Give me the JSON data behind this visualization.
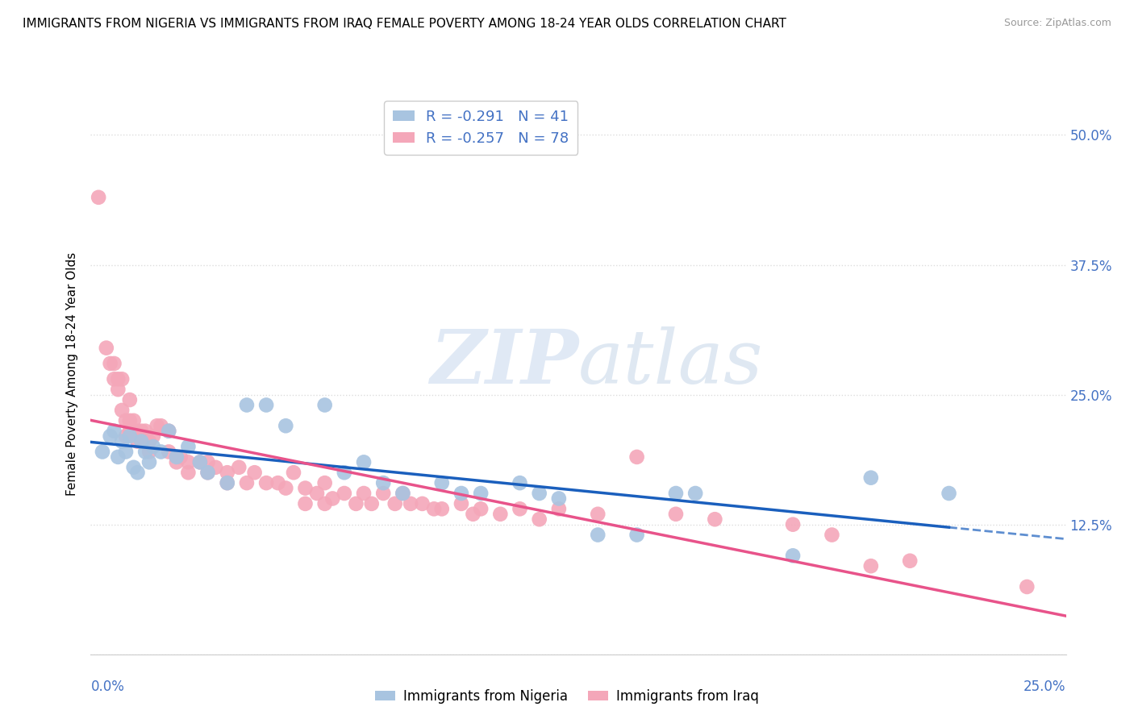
{
  "title": "IMMIGRANTS FROM NIGERIA VS IMMIGRANTS FROM IRAQ FEMALE POVERTY AMONG 18-24 YEAR OLDS CORRELATION CHART",
  "source": "Source: ZipAtlas.com",
  "ylabel": "Female Poverty Among 18-24 Year Olds",
  "xlim": [
    0.0,
    0.25
  ],
  "ylim": [
    0.0,
    0.54
  ],
  "yticks": [
    0.0,
    0.125,
    0.25,
    0.375,
    0.5
  ],
  "ytick_labels": [
    "",
    "12.5%",
    "25.0%",
    "37.5%",
    "50.0%"
  ],
  "legend_R_nigeria": "-0.291",
  "legend_N_nigeria": "41",
  "legend_R_iraq": "-0.257",
  "legend_N_iraq": "78",
  "nigeria_color": "#a8c4e0",
  "iraq_color": "#f4a7b9",
  "nigeria_line_color": "#1a5fbd",
  "iraq_line_color": "#e8538a",
  "nigeria_scatter": [
    [
      0.003,
      0.195
    ],
    [
      0.005,
      0.21
    ],
    [
      0.006,
      0.215
    ],
    [
      0.007,
      0.19
    ],
    [
      0.008,
      0.205
    ],
    [
      0.009,
      0.195
    ],
    [
      0.01,
      0.21
    ],
    [
      0.011,
      0.18
    ],
    [
      0.012,
      0.175
    ],
    [
      0.013,
      0.205
    ],
    [
      0.014,
      0.195
    ],
    [
      0.015,
      0.185
    ],
    [
      0.016,
      0.2
    ],
    [
      0.018,
      0.195
    ],
    [
      0.02,
      0.215
    ],
    [
      0.022,
      0.19
    ],
    [
      0.025,
      0.2
    ],
    [
      0.028,
      0.185
    ],
    [
      0.03,
      0.175
    ],
    [
      0.035,
      0.165
    ],
    [
      0.04,
      0.24
    ],
    [
      0.045,
      0.24
    ],
    [
      0.05,
      0.22
    ],
    [
      0.06,
      0.24
    ],
    [
      0.065,
      0.175
    ],
    [
      0.07,
      0.185
    ],
    [
      0.075,
      0.165
    ],
    [
      0.08,
      0.155
    ],
    [
      0.09,
      0.165
    ],
    [
      0.095,
      0.155
    ],
    [
      0.1,
      0.155
    ],
    [
      0.11,
      0.165
    ],
    [
      0.115,
      0.155
    ],
    [
      0.12,
      0.15
    ],
    [
      0.13,
      0.115
    ],
    [
      0.14,
      0.115
    ],
    [
      0.15,
      0.155
    ],
    [
      0.155,
      0.155
    ],
    [
      0.18,
      0.095
    ],
    [
      0.2,
      0.17
    ],
    [
      0.22,
      0.155
    ]
  ],
  "iraq_scatter": [
    [
      0.002,
      0.44
    ],
    [
      0.004,
      0.295
    ],
    [
      0.005,
      0.28
    ],
    [
      0.006,
      0.265
    ],
    [
      0.006,
      0.28
    ],
    [
      0.007,
      0.265
    ],
    [
      0.007,
      0.255
    ],
    [
      0.008,
      0.265
    ],
    [
      0.008,
      0.235
    ],
    [
      0.009,
      0.225
    ],
    [
      0.009,
      0.21
    ],
    [
      0.01,
      0.245
    ],
    [
      0.01,
      0.225
    ],
    [
      0.01,
      0.215
    ],
    [
      0.011,
      0.225
    ],
    [
      0.011,
      0.215
    ],
    [
      0.012,
      0.215
    ],
    [
      0.012,
      0.205
    ],
    [
      0.013,
      0.215
    ],
    [
      0.013,
      0.205
    ],
    [
      0.014,
      0.215
    ],
    [
      0.015,
      0.205
    ],
    [
      0.015,
      0.195
    ],
    [
      0.016,
      0.21
    ],
    [
      0.017,
      0.22
    ],
    [
      0.018,
      0.22
    ],
    [
      0.02,
      0.215
    ],
    [
      0.02,
      0.195
    ],
    [
      0.022,
      0.185
    ],
    [
      0.023,
      0.19
    ],
    [
      0.025,
      0.185
    ],
    [
      0.025,
      0.175
    ],
    [
      0.028,
      0.185
    ],
    [
      0.03,
      0.185
    ],
    [
      0.03,
      0.175
    ],
    [
      0.032,
      0.18
    ],
    [
      0.035,
      0.175
    ],
    [
      0.035,
      0.165
    ],
    [
      0.038,
      0.18
    ],
    [
      0.04,
      0.165
    ],
    [
      0.042,
      0.175
    ],
    [
      0.045,
      0.165
    ],
    [
      0.048,
      0.165
    ],
    [
      0.05,
      0.16
    ],
    [
      0.052,
      0.175
    ],
    [
      0.055,
      0.16
    ],
    [
      0.055,
      0.145
    ],
    [
      0.058,
      0.155
    ],
    [
      0.06,
      0.165
    ],
    [
      0.06,
      0.145
    ],
    [
      0.062,
      0.15
    ],
    [
      0.065,
      0.155
    ],
    [
      0.068,
      0.145
    ],
    [
      0.07,
      0.155
    ],
    [
      0.072,
      0.145
    ],
    [
      0.075,
      0.155
    ],
    [
      0.078,
      0.145
    ],
    [
      0.08,
      0.155
    ],
    [
      0.082,
      0.145
    ],
    [
      0.085,
      0.145
    ],
    [
      0.088,
      0.14
    ],
    [
      0.09,
      0.14
    ],
    [
      0.095,
      0.145
    ],
    [
      0.098,
      0.135
    ],
    [
      0.1,
      0.14
    ],
    [
      0.105,
      0.135
    ],
    [
      0.11,
      0.14
    ],
    [
      0.115,
      0.13
    ],
    [
      0.12,
      0.14
    ],
    [
      0.13,
      0.135
    ],
    [
      0.14,
      0.19
    ],
    [
      0.15,
      0.135
    ],
    [
      0.16,
      0.13
    ],
    [
      0.18,
      0.125
    ],
    [
      0.19,
      0.115
    ],
    [
      0.2,
      0.085
    ],
    [
      0.21,
      0.09
    ],
    [
      0.24,
      0.065
    ]
  ],
  "watermark_zip": "ZIP",
  "watermark_atlas": "atlas",
  "background_color": "#ffffff",
  "grid_color": "#dddddd",
  "title_fontsize": 11,
  "axis_label_fontsize": 11,
  "tick_fontsize": 12,
  "tick_color": "#4472c4",
  "legend_text_color": "#4472c4",
  "bottom_legend_label_nigeria": "Immigrants from Nigeria",
  "bottom_legend_label_iraq": "Immigrants from Iraq"
}
